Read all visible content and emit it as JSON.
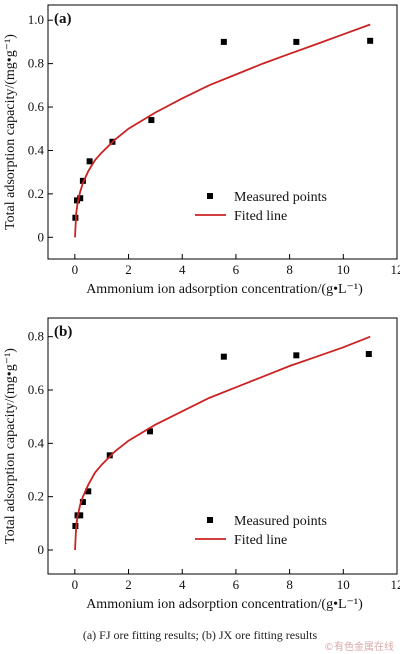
{
  "chart_data": [
    {
      "type": "scatter",
      "panel_label": "(a)",
      "xlabel": "Ammonium ion adsorption concentration/(g•L⁻¹)",
      "ylabel": "Total adsorption capacity/(mg•g⁻¹)",
      "xlim": [
        -1,
        12
      ],
      "ylim": [
        -0.1,
        1.07
      ],
      "xticks": [
        "0",
        "2",
        "4",
        "6",
        "8",
        "10",
        "12"
      ],
      "yticks": [
        "0",
        "0.2",
        "0.4",
        "0.6",
        "0.8",
        "1.0"
      ],
      "legend_position": "lower-right",
      "series": [
        {
          "name": "Measured points",
          "kind": "points",
          "color": "#000000",
          "x": [
            0.02,
            0.08,
            0.2,
            0.3,
            0.55,
            1.4,
            2.85,
            5.55,
            8.25,
            11.0
          ],
          "y": [
            0.09,
            0.17,
            0.18,
            0.26,
            0.35,
            0.44,
            0.54,
            0.9,
            0.9,
            0.905
          ]
        },
        {
          "name": "Fited line",
          "kind": "line",
          "color": "#cc2222",
          "x": [
            0.005,
            0.05,
            0.1,
            0.2,
            0.3,
            0.5,
            0.75,
            1,
            1.5,
            2,
            3,
            4,
            5,
            6,
            7,
            8,
            9,
            10,
            11
          ],
          "y": [
            0.0,
            0.11,
            0.155,
            0.21,
            0.25,
            0.305,
            0.355,
            0.39,
            0.45,
            0.5,
            0.575,
            0.64,
            0.7,
            0.75,
            0.8,
            0.845,
            0.89,
            0.935,
            0.98
          ]
        }
      ]
    },
    {
      "type": "scatter",
      "panel_label": "(b)",
      "xlabel": "Ammonium ion adsorption concentration/(g•L⁻¹)",
      "ylabel": "Total adsorption capacity/(mg•g⁻¹)",
      "xlim": [
        -1,
        12
      ],
      "ylim": [
        -0.09,
        0.87
      ],
      "xticks": [
        "0",
        "2",
        "4",
        "6",
        "8",
        "10",
        "12"
      ],
      "yticks": [
        "0",
        "0.2",
        "0.4",
        "0.6",
        "0.8"
      ],
      "legend_position": "lower-right",
      "series": [
        {
          "name": "Measured points",
          "kind": "points",
          "color": "#000000",
          "x": [
            0.02,
            0.1,
            0.2,
            0.3,
            0.5,
            1.3,
            2.8,
            5.55,
            8.25,
            10.95
          ],
          "y": [
            0.09,
            0.13,
            0.13,
            0.18,
            0.22,
            0.355,
            0.445,
            0.725,
            0.73,
            0.735
          ]
        },
        {
          "name": "Fited line",
          "kind": "line",
          "color": "#cc2222",
          "x": [
            0.005,
            0.05,
            0.1,
            0.2,
            0.3,
            0.5,
            0.75,
            1,
            1.5,
            2,
            3,
            4,
            5,
            6,
            7,
            8,
            9,
            10,
            11
          ],
          "y": [
            0.0,
            0.09,
            0.125,
            0.17,
            0.2,
            0.245,
            0.29,
            0.32,
            0.37,
            0.41,
            0.47,
            0.52,
            0.57,
            0.61,
            0.65,
            0.69,
            0.725,
            0.76,
            0.8
          ]
        }
      ]
    }
  ],
  "caption": "(a) FJ ore fitting results; (b) JX ore fitting results",
  "watermark": "©有色金属在线"
}
